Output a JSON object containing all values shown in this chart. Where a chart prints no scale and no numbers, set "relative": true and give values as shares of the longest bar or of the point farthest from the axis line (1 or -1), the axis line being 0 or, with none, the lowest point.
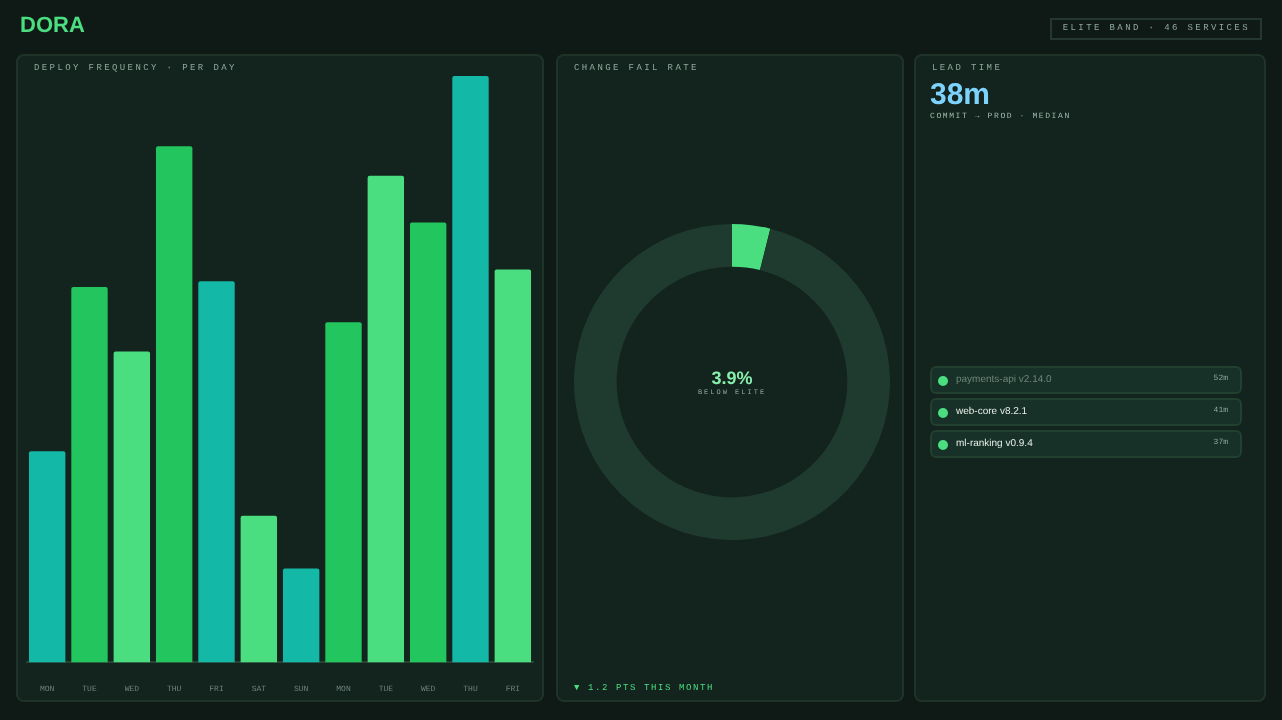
{
  "chart_data": [
    {
      "type": "other",
      "title": "DORA",
      "annotations": [
        "ELITE BAND · 46 SERVICES"
      ]
    },
    {
      "type": "bar",
      "title": "DEPLOY FREQUENCY · PER DAY",
      "relative": true,
      "categories": [
        "MON",
        "TUE",
        "WED",
        "THU",
        "FRI",
        "SAT",
        "SUN",
        "MON",
        "TUE",
        "WED",
        "THU",
        "FRI"
      ],
      "values": [
        0.36,
        0.64,
        0.53,
        0.88,
        0.65,
        0.25,
        0.16,
        0.58,
        0.83,
        0.75,
        1,
        0.67
      ],
      "colors": [
        "#14b8a6",
        "#22c55e",
        "#4ade80",
        "#22c55e",
        "#14b8a6",
        "#4ade80",
        "#14b8a6",
        "#22c55e",
        "#4ade80",
        "#22c55e",
        "#14b8a6",
        "#4ade80"
      ]
    },
    {
      "type": "donut",
      "title": "CHANGE FAIL RATE",
      "categories": [
        null,
        null
      ],
      "values": [
        3.9,
        96.1
      ],
      "colors": [
        "#4ade80",
        "#1f3b2f"
      ],
      "annotations": [
        "3.9%",
        "BELOW ELITE",
        "▼ 1.2 PTS THIS MONTH"
      ]
    },
    {
      "type": "other",
      "title": "LEAD TIME",
      "annotations": [
        "38m",
        "COMMIT → PROD · MEDIAN",
        "payments-api v2.14.0",
        "52m",
        "web-core v8.2.1",
        "41m",
        "ml-ranking v0.9.4",
        "37m"
      ]
    }
  ]
}
